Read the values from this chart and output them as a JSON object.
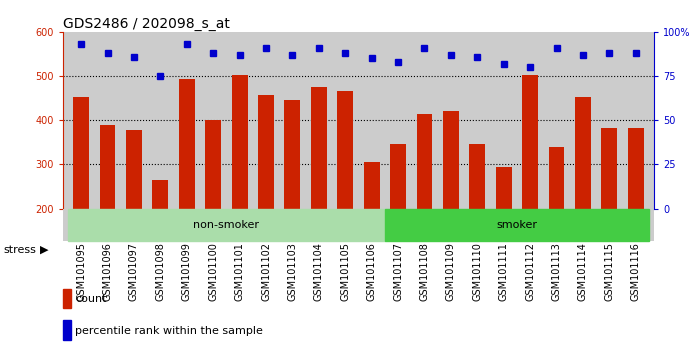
{
  "title": "GDS2486 / 202098_s_at",
  "categories": [
    "GSM101095",
    "GSM101096",
    "GSM101097",
    "GSM101098",
    "GSM101099",
    "GSM101100",
    "GSM101101",
    "GSM101102",
    "GSM101103",
    "GSM101104",
    "GSM101105",
    "GSM101106",
    "GSM101107",
    "GSM101108",
    "GSM101109",
    "GSM101110",
    "GSM101111",
    "GSM101112",
    "GSM101113",
    "GSM101114",
    "GSM101115",
    "GSM101116"
  ],
  "bar_values": [
    453,
    390,
    378,
    265,
    493,
    400,
    502,
    458,
    445,
    476,
    467,
    305,
    347,
    414,
    420,
    347,
    295,
    502,
    340,
    453,
    383,
    383
  ],
  "bar_color": "#cc2200",
  "dot_values": [
    93,
    88,
    86,
    75,
    93,
    88,
    87,
    91,
    87,
    91,
    88,
    85,
    83,
    91,
    87,
    86,
    82,
    80,
    91,
    87,
    88,
    88
  ],
  "dot_color": "#0000cc",
  "ylim_left": [
    200,
    600
  ],
  "ylim_right": [
    0,
    100
  ],
  "yticks_left": [
    200,
    300,
    400,
    500,
    600
  ],
  "yticks_right": [
    0,
    25,
    50,
    75,
    100
  ],
  "ytick_labels_right": [
    "0",
    "25",
    "50",
    "75",
    "100%"
  ],
  "non_smoker_count": 12,
  "smoker_count": 10,
  "non_smoker_color": "#aaddaa",
  "smoker_color": "#44cc44",
  "stress_label": "stress",
  "non_smoker_label": "non-smoker",
  "smoker_label": "smoker",
  "legend_count_color": "#cc2200",
  "legend_dot_color": "#0000cc",
  "legend_count_label": "count",
  "legend_dot_label": "percentile rank within the sample",
  "bar_width": 0.6,
  "bg_color": "#cccccc",
  "title_fontsize": 10,
  "tick_fontsize": 7,
  "axis_label_color_left": "#cc2200",
  "axis_label_color_right": "#0000cc"
}
